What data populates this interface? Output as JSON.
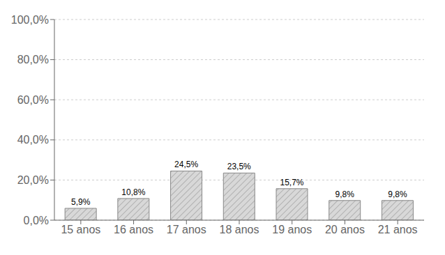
{
  "chart_data": {
    "type": "bar",
    "categories": [
      "15 anos",
      "16 anos",
      "17 anos",
      "18 anos",
      "19 anos",
      "20 anos",
      "21 anos"
    ],
    "values": [
      5.9,
      10.8,
      24.5,
      23.5,
      15.7,
      9.8,
      9.8
    ],
    "value_labels": [
      "5,9%",
      "10,8%",
      "24,5%",
      "23,5%",
      "15,7%",
      "9,8%",
      "9,8%"
    ],
    "color": "#d8d8d8",
    "ylim": [
      0,
      100
    ],
    "yticks": [
      {
        "value": 0,
        "label": "0,0%"
      },
      {
        "value": 20,
        "label": "20,0%"
      },
      {
        "value": 40,
        "label": "40,0%"
      },
      {
        "value": 60,
        "label": "60,0%"
      },
      {
        "value": 80,
        "label": "80,0%"
      },
      {
        "value": 100,
        "label": "100,0%"
      }
    ],
    "grid": true,
    "data_labels": true
  }
}
